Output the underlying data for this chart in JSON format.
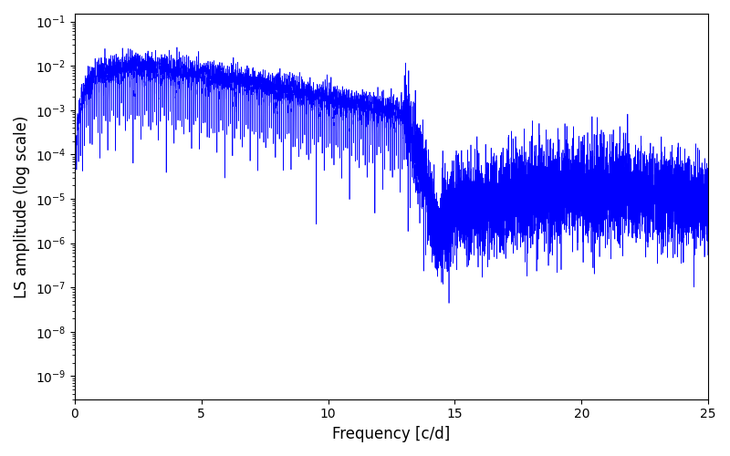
{
  "title": "",
  "xlabel": "Frequency [c/d]",
  "ylabel": "LS amplitude (log scale)",
  "xlim": [
    0,
    25
  ],
  "ylim": [
    3e-10,
    0.15
  ],
  "line_color": "#0000ff",
  "figsize": [
    8.0,
    5.0
  ],
  "dpi": 100,
  "seed": 42,
  "n_points": 10000
}
